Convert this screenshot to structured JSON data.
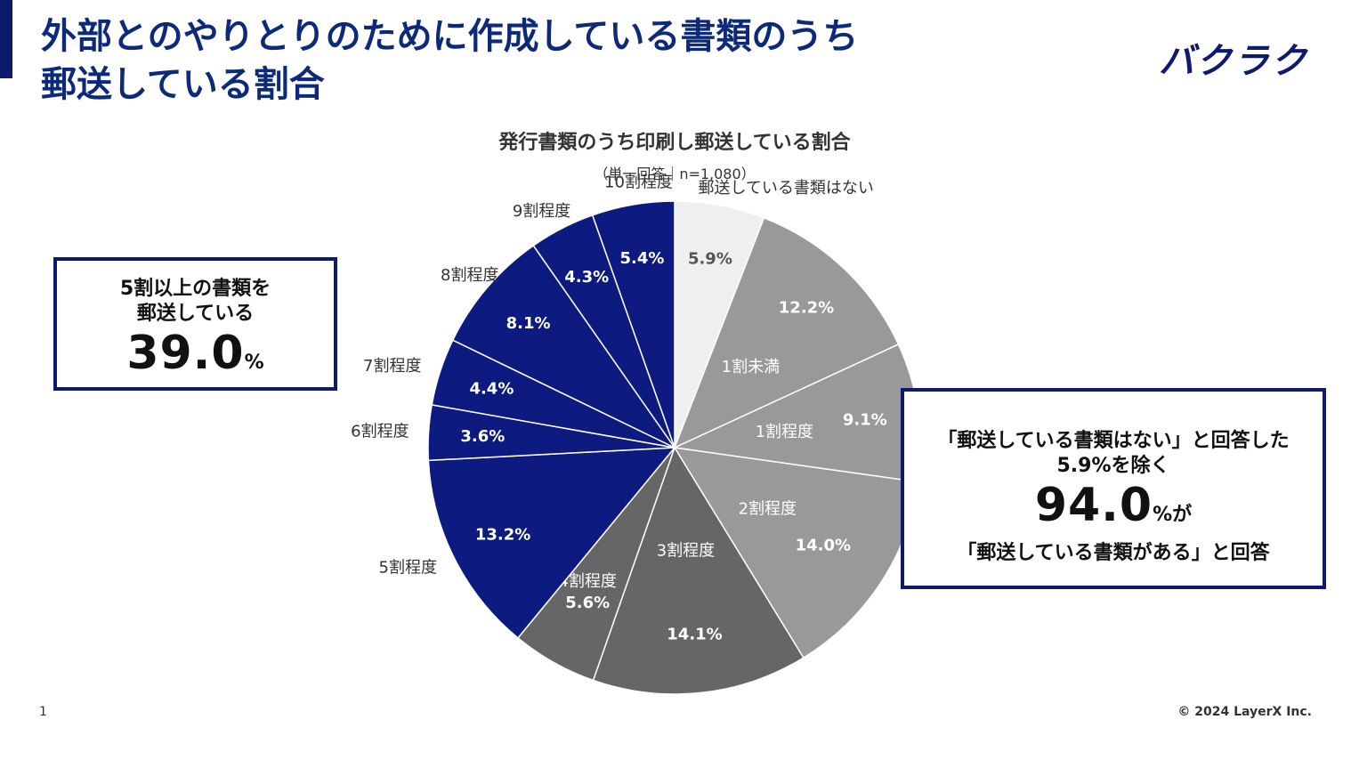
{
  "page": {
    "title_line1": "外部とのやりとりのために作成している書類のうち",
    "title_line2": "郵送している割合",
    "logo": "バクラク",
    "page_number": "1",
    "copyright": "© 2024 LayerX Inc."
  },
  "callout_left": {
    "line1": "5割以上の書類を",
    "line2": "郵送している",
    "value": "39.0",
    "unit": "%"
  },
  "callout_right": {
    "line1": "「郵送している書類はない」と回答した",
    "line2": "5.9%を除く",
    "value": "94.0",
    "unit": "%が",
    "line3": "「郵送している書類がある」と回答"
  },
  "chart_data": {
    "type": "pie",
    "title": "発行書類のうち印刷し郵送している割合",
    "subtitle": "（単一回答｜n=1,080）",
    "start_angle_deg": 0,
    "direction": "clockwise",
    "slices": [
      {
        "label": "郵送している書類はない",
        "value": 5.9,
        "value_label": "5.9%",
        "color": "#efefef",
        "text_color": "#555555"
      },
      {
        "label": "1割未満",
        "value": 12.2,
        "value_label": "12.2%",
        "color": "#999999",
        "text_color": "#ffffff"
      },
      {
        "label": "1割程度",
        "value": 9.1,
        "value_label": "9.1%",
        "color": "#999999",
        "text_color": "#ffffff"
      },
      {
        "label": "2割程度",
        "value": 14.0,
        "value_label": "14.0%",
        "color": "#999999",
        "text_color": "#ffffff"
      },
      {
        "label": "3割程度",
        "value": 14.1,
        "value_label": "14.1%",
        "color": "#666666",
        "text_color": "#ffffff"
      },
      {
        "label": "4割程度",
        "value": 5.6,
        "value_label": "5.6%",
        "color": "#666666",
        "text_color": "#ffffff"
      },
      {
        "label": "5割程度",
        "value": 13.2,
        "value_label": "13.2%",
        "color": "#0d1a80",
        "text_color": "#ffffff"
      },
      {
        "label": "6割程度",
        "value": 3.6,
        "value_label": "3.6%",
        "color": "#0d1a80",
        "text_color": "#ffffff"
      },
      {
        "label": "7割程度",
        "value": 4.4,
        "value_label": "4.4%",
        "color": "#0d1a80",
        "text_color": "#ffffff"
      },
      {
        "label": "8割程度",
        "value": 8.1,
        "value_label": "8.1%",
        "color": "#0d1a80",
        "text_color": "#ffffff"
      },
      {
        "label": "9割程度",
        "value": 4.3,
        "value_label": "4.3%",
        "color": "#0d1a80",
        "text_color": "#ffffff"
      },
      {
        "label": "10割程度",
        "value": 5.4,
        "value_label": "5.4%",
        "color": "#0d1a80",
        "text_color": "#ffffff"
      }
    ]
  }
}
